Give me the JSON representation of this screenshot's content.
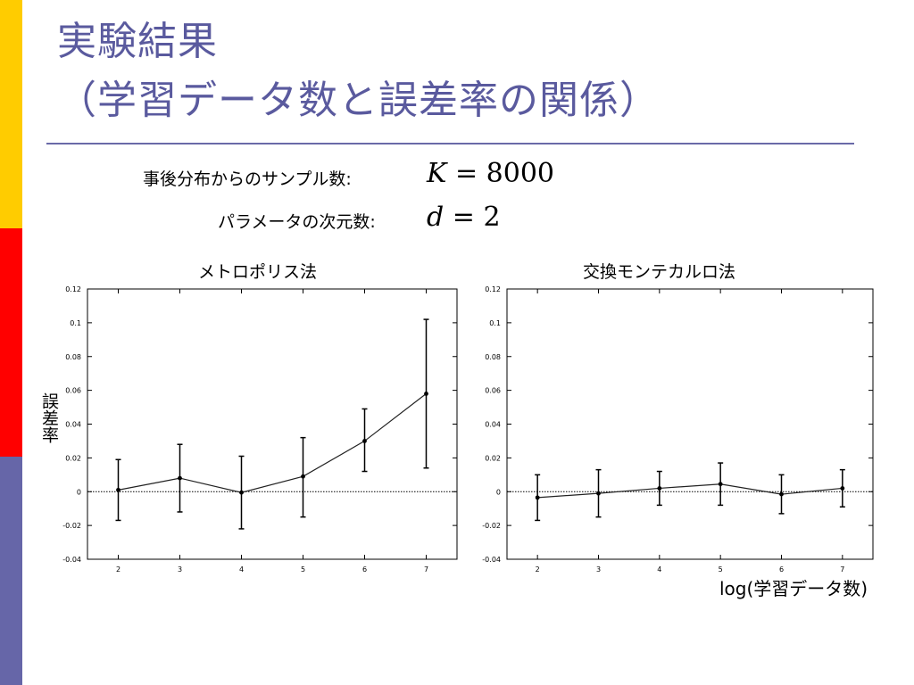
{
  "colors": {
    "accent_bar": [
      "#ffcc00",
      "#ff0000",
      "#6666a8"
    ],
    "title": "#5a5a9e",
    "divider": "#6a6aa8"
  },
  "slide": {
    "title_line1": "実験結果",
    "title_line2": "（学習データ数と誤差率の関係）"
  },
  "params": {
    "samples_label": "事後分布からのサンプル数:",
    "samples_var": "K",
    "samples_eq": "= 8000",
    "dim_label": "パラメータの次元数:",
    "dim_var": "d",
    "dim_eq": "= 2"
  },
  "axis_labels": {
    "y": "誤差率",
    "x": "log(学習データ数)"
  },
  "chart_data": [
    {
      "type": "line",
      "title": "メトロポリス法",
      "x": [
        2,
        3,
        4,
        5,
        6,
        7
      ],
      "y": [
        0.001,
        0.008,
        -0.0005,
        0.009,
        0.03,
        0.058
      ],
      "y_err_low": [
        -0.017,
        -0.012,
        -0.022,
        -0.015,
        0.012,
        0.014
      ],
      "y_err_high": [
        0.019,
        0.028,
        0.021,
        0.032,
        0.049,
        0.102
      ],
      "xlim": [
        1.5,
        7.5
      ],
      "ylim": [
        -0.04,
        0.12
      ],
      "xticks": [
        "2",
        "3",
        "4",
        "5",
        "6",
        "7"
      ],
      "yticks": [
        "-0.04",
        "-0.02",
        "0",
        "0.02",
        "0.04",
        "0.06",
        "0.08",
        "0.1",
        "0.12"
      ],
      "zero_line": true
    },
    {
      "type": "line",
      "title": "交換モンテカルロ法",
      "x": [
        2,
        3,
        4,
        5,
        6,
        7
      ],
      "y": [
        -0.0035,
        -0.001,
        0.002,
        0.0045,
        -0.0015,
        0.002
      ],
      "y_err_low": [
        -0.017,
        -0.015,
        -0.008,
        -0.008,
        -0.013,
        -0.009
      ],
      "y_err_high": [
        0.01,
        0.013,
        0.012,
        0.017,
        0.01,
        0.013
      ],
      "xlim": [
        1.5,
        7.5
      ],
      "ylim": [
        -0.04,
        0.12
      ],
      "xticks": [
        "2",
        "3",
        "4",
        "5",
        "6",
        "7"
      ],
      "yticks": [
        "-0.04",
        "-0.02",
        "0",
        "0.02",
        "0.04",
        "0.06",
        "0.08",
        "0.1",
        "0.12"
      ],
      "zero_line": true
    }
  ]
}
